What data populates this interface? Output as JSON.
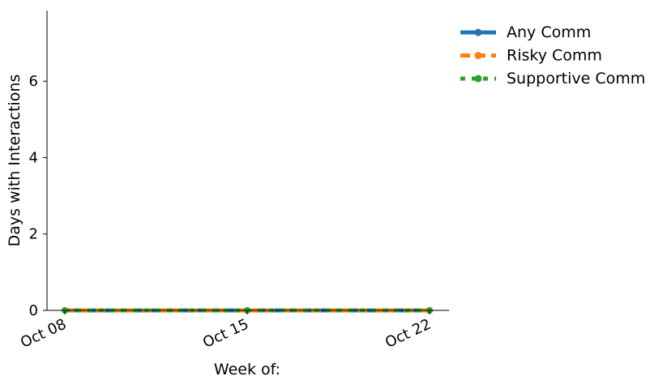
{
  "chart_data": {
    "type": "line",
    "title": "",
    "xlabel": "Week of:",
    "ylabel": "Days with Interactions",
    "x": [
      "Oct 08",
      "Oct 15",
      "Oct 22"
    ],
    "ylim": [
      0,
      7.85
    ],
    "yticks": [
      0,
      2,
      4,
      6
    ],
    "grid": false,
    "legend_position": "outside-top-right",
    "series": [
      {
        "name": "Any Comm",
        "values": [
          0,
          0,
          0
        ],
        "color": "#1f77b4",
        "style": "solid"
      },
      {
        "name": "Risky Comm",
        "values": [
          0,
          0,
          0
        ],
        "color": "#ff7f0e",
        "style": "dashed"
      },
      {
        "name": "Supportive Comm",
        "values": [
          0,
          0,
          0
        ],
        "color": "#2ca02c",
        "style": "dotted"
      }
    ]
  }
}
